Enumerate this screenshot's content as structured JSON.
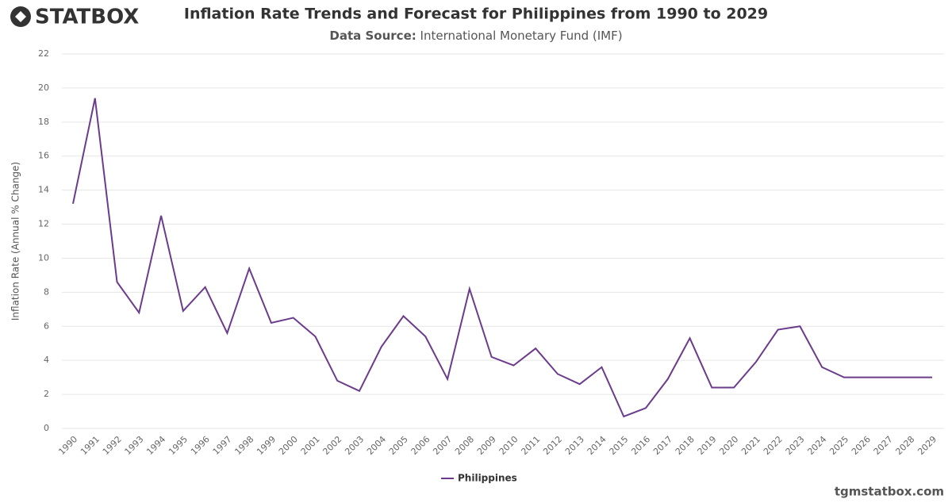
{
  "brand": "STATBOX",
  "website": "tgmstatbox.com",
  "chart_data": {
    "type": "line",
    "title": "Inflation Rate Trends and Forecast for Philippines from 1990 to 2029",
    "subtitle_label": "Data Source:",
    "subtitle": "International Monetary Fund (IMF)",
    "y_label": "Inflation Rate (Annual % Change)",
    "categories": [
      "1990",
      "1991",
      "1992",
      "1993",
      "1994",
      "1995",
      "1996",
      "1997",
      "1998",
      "1999",
      "2000",
      "2001",
      "2002",
      "2003",
      "2004",
      "2005",
      "2006",
      "2007",
      "2008",
      "2009",
      "2010",
      "2011",
      "2012",
      "2013",
      "2014",
      "2015",
      "2016",
      "2017",
      "2018",
      "2019",
      "2020",
      "2021",
      "2022",
      "2023",
      "2024",
      "2025",
      "2026",
      "2027",
      "2028",
      "2029"
    ],
    "series": [
      {
        "name": "Philippines",
        "color": "#6b3b8c",
        "values": [
          13.2,
          19.4,
          8.6,
          6.8,
          12.5,
          6.9,
          8.3,
          5.6,
          9.4,
          6.2,
          6.5,
          5.4,
          2.8,
          2.2,
          4.8,
          6.6,
          5.4,
          2.9,
          8.2,
          4.2,
          3.7,
          4.7,
          3.2,
          2.6,
          3.6,
          0.7,
          1.2,
          2.9,
          5.3,
          2.4,
          2.4,
          3.9,
          5.8,
          6.0,
          3.6,
          3.0,
          3.0,
          3.0,
          3.0,
          3.0
        ]
      }
    ],
    "ylim": [
      0,
      22
    ],
    "yticks": [
      0,
      2,
      4,
      6,
      8,
      10,
      12,
      14,
      16,
      18,
      20,
      22
    ],
    "grid": true,
    "legend": "bottom"
  }
}
